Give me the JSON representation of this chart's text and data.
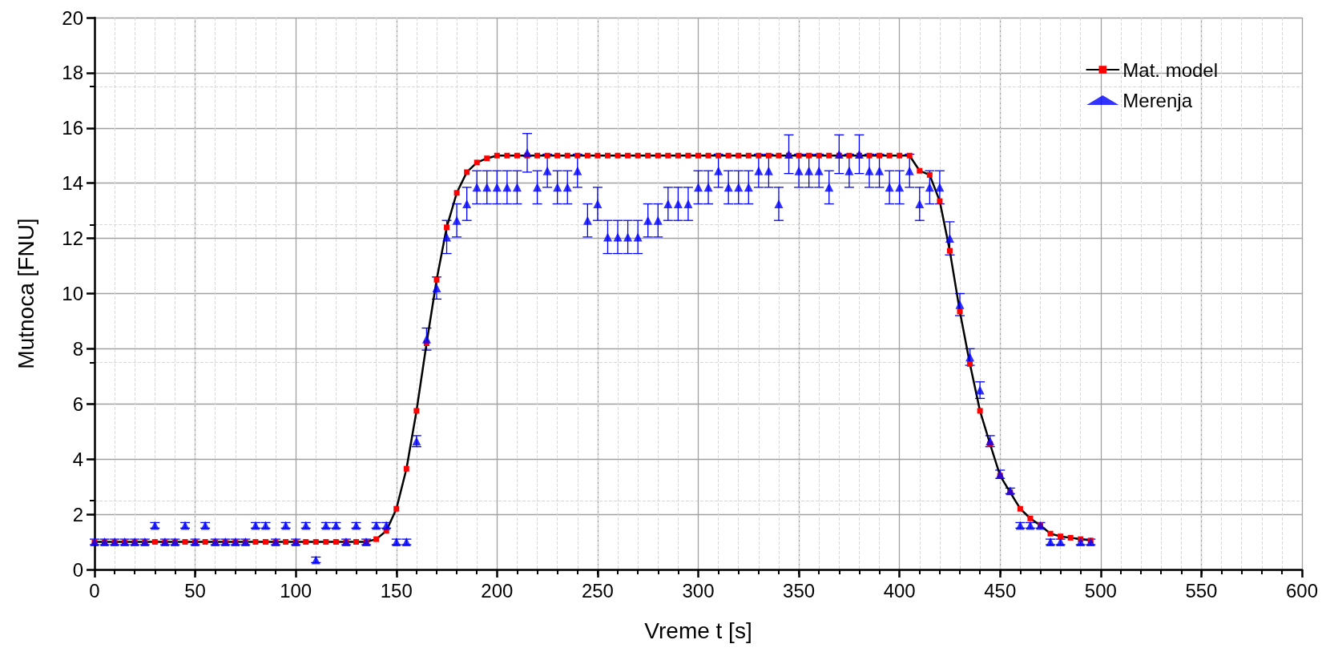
{
  "chart_data": {
    "type": "line",
    "xlabel": "Vreme t [s]",
    "ylabel": "Mutnoca [FNU]",
    "xlim": [
      0,
      600
    ],
    "xticks": [
      0,
      50,
      100,
      150,
      200,
      250,
      300,
      350,
      400,
      450,
      500,
      550,
      600
    ],
    "ylim": [
      0,
      20
    ],
    "yticks": [
      0,
      2,
      4,
      6,
      8,
      10,
      12,
      14,
      16,
      18,
      20
    ],
    "grid": true,
    "legend": "top right",
    "series": [
      {
        "name": "Mat. model",
        "marker": "square",
        "line_style": "solid",
        "color": "#ff0000",
        "x": [
          0,
          5,
          10,
          15,
          20,
          25,
          30,
          35,
          40,
          45,
          50,
          55,
          60,
          65,
          70,
          75,
          80,
          85,
          90,
          95,
          100,
          105,
          110,
          115,
          120,
          125,
          130,
          135,
          140,
          145,
          150,
          155,
          160,
          165,
          170,
          175,
          180,
          185,
          190,
          195,
          200,
          205,
          210,
          215,
          220,
          225,
          230,
          235,
          240,
          245,
          250,
          255,
          260,
          265,
          270,
          275,
          280,
          285,
          290,
          295,
          300,
          305,
          310,
          315,
          320,
          325,
          330,
          335,
          340,
          345,
          350,
          355,
          360,
          365,
          370,
          375,
          380,
          385,
          390,
          395,
          400,
          405,
          410,
          415,
          420,
          425,
          430,
          435,
          440,
          445,
          450,
          455,
          460,
          465,
          470,
          475,
          480,
          485,
          490,
          495
        ],
        "values": [
          1,
          1,
          1,
          1,
          1,
          1,
          1,
          1,
          1,
          1,
          1,
          1,
          1,
          1,
          1,
          1,
          1,
          1,
          1,
          1,
          1,
          1,
          1,
          1,
          1,
          1,
          1,
          1,
          1.1,
          1.4,
          2.2,
          3.65,
          5.75,
          8.2,
          10.5,
          12.4,
          13.65,
          14.4,
          14.75,
          14.9,
          15,
          15,
          15,
          15,
          15,
          15,
          15,
          15,
          15,
          15,
          15,
          15,
          15,
          15,
          15,
          15,
          15,
          15,
          15,
          15,
          15,
          15,
          15,
          15,
          15,
          15,
          15,
          15,
          15,
          15,
          15,
          15,
          15,
          15,
          15,
          15,
          15,
          15,
          15,
          15,
          15,
          15,
          14.45,
          14.3,
          13.35,
          11.55,
          9.35,
          7.45,
          5.75,
          4.55,
          3.4,
          2.8,
          2.2,
          1.85,
          1.6,
          1.3,
          1.2,
          1.15,
          1.1,
          1.05
        ]
      },
      {
        "name": "Merenja",
        "type": "scatter",
        "marker": "triangle",
        "color": "#0000ff",
        "x": [
          0,
          5,
          10,
          15,
          20,
          25,
          30,
          35,
          40,
          45,
          50,
          55,
          60,
          65,
          70,
          75,
          80,
          85,
          90,
          95,
          100,
          105,
          110,
          115,
          120,
          125,
          130,
          135,
          140,
          145,
          150,
          155,
          160,
          165,
          170,
          175,
          180,
          185,
          190,
          195,
          200,
          205,
          210,
          215,
          220,
          225,
          230,
          235,
          240,
          245,
          250,
          255,
          260,
          265,
          270,
          275,
          280,
          285,
          290,
          295,
          300,
          305,
          310,
          315,
          320,
          325,
          330,
          335,
          340,
          345,
          350,
          355,
          360,
          365,
          370,
          375,
          380,
          385,
          390,
          395,
          400,
          405,
          410,
          415,
          420,
          425,
          430,
          435,
          440,
          445,
          450,
          455,
          460,
          465,
          470,
          475,
          480,
          490,
          495
        ],
        "values": [
          1,
          1,
          1,
          1,
          1,
          1,
          1.6,
          1,
          1,
          1.6,
          1,
          1.6,
          1,
          1,
          1,
          1,
          1.6,
          1.6,
          1,
          1.6,
          1,
          1.6,
          0.35,
          1.6,
          1.6,
          1,
          1.6,
          1,
          1.6,
          1.6,
          1,
          1,
          4.65,
          8.35,
          10.2,
          12.05,
          12.65,
          13.25,
          13.85,
          13.85,
          13.85,
          13.85,
          13.85,
          15.1,
          13.85,
          14.45,
          13.85,
          13.85,
          14.45,
          12.65,
          13.25,
          12.05,
          12.05,
          12.05,
          12.05,
          12.65,
          12.65,
          13.25,
          13.25,
          13.25,
          13.85,
          13.85,
          14.45,
          13.85,
          13.85,
          13.85,
          14.45,
          14.45,
          13.25,
          15.05,
          14.45,
          14.45,
          14.45,
          13.85,
          15.05,
          14.45,
          15.05,
          14.45,
          14.45,
          13.85,
          13.85,
          14.45,
          13.25,
          13.85,
          13.85,
          12,
          9.6,
          7.7,
          6.5,
          4.65,
          3.45,
          2.85,
          1.6,
          1.6,
          1.6,
          1,
          1,
          1,
          1
        ],
        "errors": [
          0.1,
          0.1,
          0.1,
          0.1,
          0.1,
          0.1,
          0.1,
          0.1,
          0.1,
          0.1,
          0.1,
          0.1,
          0.1,
          0.1,
          0.1,
          0.1,
          0.1,
          0.1,
          0.1,
          0.1,
          0.1,
          0.1,
          0.1,
          0.1,
          0.1,
          0.1,
          0.1,
          0.1,
          0.1,
          0.1,
          0.1,
          0.1,
          0.2,
          0.4,
          0.4,
          0.6,
          0.6,
          0.6,
          0.6,
          0.6,
          0.6,
          0.6,
          0.6,
          0.7,
          0.6,
          0.6,
          0.6,
          0.6,
          0.6,
          0.6,
          0.6,
          0.6,
          0.6,
          0.6,
          0.6,
          0.6,
          0.6,
          0.6,
          0.6,
          0.6,
          0.6,
          0.6,
          0.6,
          0.6,
          0.6,
          0.6,
          0.6,
          0.6,
          0.6,
          0.7,
          0.6,
          0.6,
          0.6,
          0.6,
          0.7,
          0.6,
          0.7,
          0.6,
          0.6,
          0.6,
          0.6,
          0.6,
          0.6,
          0.6,
          0.6,
          0.6,
          0.4,
          0.3,
          0.3,
          0.2,
          0.15,
          0.1,
          0.1,
          0.1,
          0.1,
          0.1,
          0.1,
          0.1,
          0.1
        ]
      }
    ]
  }
}
